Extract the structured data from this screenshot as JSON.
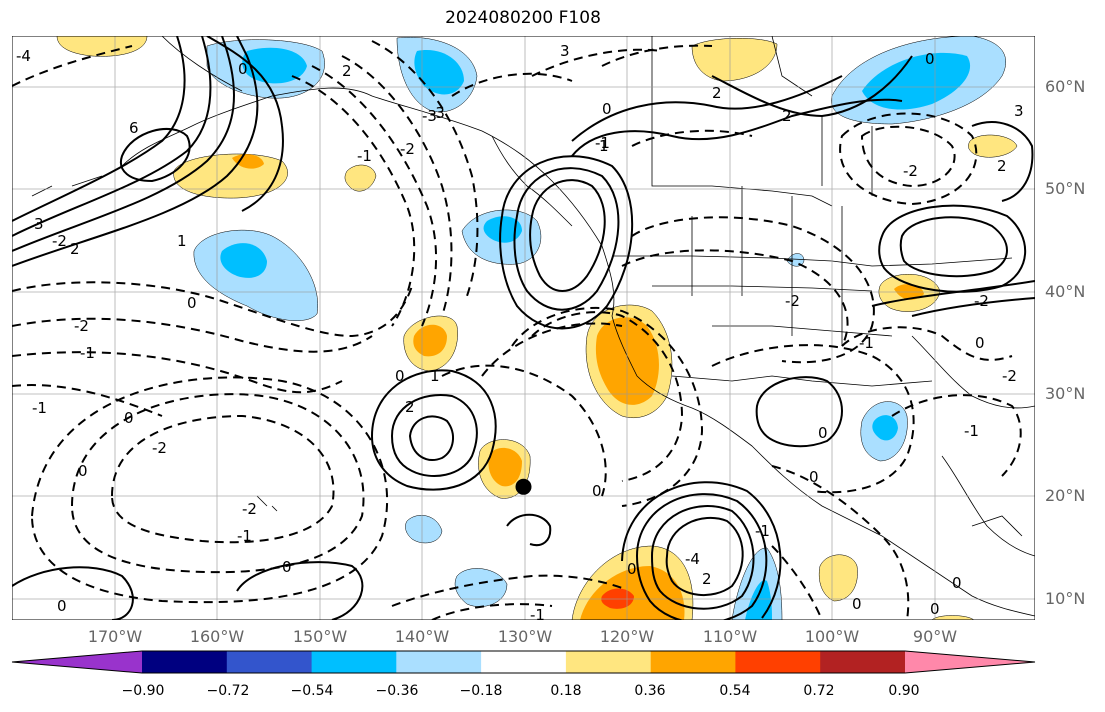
{
  "title": "2024080200 F108",
  "lat_labels": [
    {
      "text": "60°N",
      "lat": 60
    },
    {
      "text": "50°N",
      "lat": 50
    },
    {
      "text": "40°N",
      "lat": 40
    },
    {
      "text": "30°N",
      "lat": 30
    },
    {
      "text": "20°N",
      "lat": 20
    },
    {
      "text": "10°N",
      "lat": 10
    }
  ],
  "lon_labels": [
    {
      "text": "170°W",
      "lon": -170
    },
    {
      "text": "160°W",
      "lon": -160
    },
    {
      "text": "150°W",
      "lon": -150
    },
    {
      "text": "140°W",
      "lon": -140
    },
    {
      "text": "130°W",
      "lon": -130
    },
    {
      "text": "120°W",
      "lon": -120
    },
    {
      "text": "110°W",
      "lon": -110
    },
    {
      "text": "100°W",
      "lon": -100
    },
    {
      "text": "90°W",
      "lon": -90
    }
  ],
  "colorbar": {
    "ticks": [
      "−0.90",
      "−0.72",
      "−0.54",
      "−0.36",
      "−0.18",
      "0.18",
      "0.36",
      "0.54",
      "0.72",
      "0.90"
    ],
    "colors": {
      "under": "#9933cc",
      "bins": [
        "#000080",
        "#3355cc",
        "#00bfff",
        "#aadfff",
        "#ffffff",
        "#ffe680",
        "#ffa500",
        "#ff4000",
        "#b22222"
      ],
      "over": "#ff88aa"
    }
  },
  "map": {
    "extent": {
      "lon_min": -180,
      "lon_max": -80,
      "lat_min": 8,
      "lat_max": 65
    },
    "marker": {
      "lon": -130,
      "lat": 21
    }
  },
  "contour_labels": [
    "-4",
    "6",
    "-3",
    "2",
    "-1",
    "-2",
    "0",
    "1",
    "3",
    "-2",
    "3",
    "2",
    "2",
    "1",
    "0",
    "-2",
    "-1",
    "-1",
    "0",
    "-2",
    "0",
    "-2",
    "-1",
    "0",
    "0",
    "1",
    "2",
    "-1",
    "-2",
    "0",
    "-3",
    "-1",
    "0",
    "-4",
    "2",
    "0",
    "-2",
    "0",
    "0",
    "-1",
    "0",
    "0",
    "0",
    "0",
    "-2",
    "2",
    "-1",
    "-1",
    "0",
    "-2",
    "2",
    "0",
    "3"
  ]
}
